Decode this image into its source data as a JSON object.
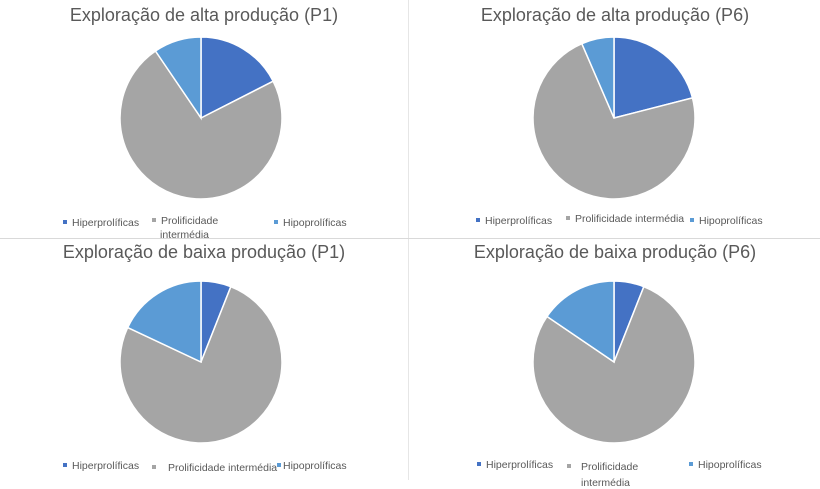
{
  "colors": {
    "hiper": "#4472C4",
    "prolif": "#A5A5A5",
    "hipo": "#5B9BD5",
    "title": "#595959",
    "legend_text": "#595959"
  },
  "legend_labels": [
    "Hiperprolíficas",
    "Prolificidade intermédia",
    "Hipoprolíficas"
  ],
  "charts": [
    {
      "title": "Exploração de alta produção (P1)",
      "legend": {
        "hiper": "Hiperprolíficas",
        "prolif_line1": "Prolificidade",
        "prolif_line2": "intermédia",
        "hipo": "Hipoprolíficas"
      }
    },
    {
      "title": "Exploração de alta produção (P6)",
      "legend": {
        "hiper": "Hiperprolíficas",
        "prolif": "Prolificidade intermédia",
        "hipo": "Hipoprolíficas"
      }
    },
    {
      "title": "Exploração de baixa produção (P1)",
      "legend": {
        "hiper": "Hiperprolíficas",
        "prolif": "Prolificidade intermédia",
        "hipo": "Hipoprolíficas"
      }
    },
    {
      "title": "Exploração de baixa produção (P6)",
      "legend": {
        "hiper": "Hiperprolíficas",
        "prolif_line1": "Prolificidade",
        "prolif_line2": "intermédia",
        "hipo": "Hipoprolíficas"
      }
    }
  ],
  "chart_data": [
    {
      "type": "pie",
      "title": "Exploração de alta produção (P1)",
      "categories": [
        "Hiperprolíficas",
        "Prolificidade intermédia",
        "Hipoprolíficas"
      ],
      "values": [
        17.5,
        73,
        9.5
      ],
      "unit": "%",
      "legend_position": "bottom"
    },
    {
      "type": "pie",
      "title": "Exploração de alta produção (P6)",
      "categories": [
        "Hiperprolíficas",
        "Prolificidade intermédia",
        "Hipoprolíficas"
      ],
      "values": [
        21,
        72.5,
        6.5
      ],
      "unit": "%",
      "legend_position": "bottom"
    },
    {
      "type": "pie",
      "title": "Exploração de baixa produção (P1)",
      "categories": [
        "Hiperprolíficas",
        "Prolificidade intermédia",
        "Hipoprolíficas"
      ],
      "values": [
        6,
        76,
        18
      ],
      "unit": "%",
      "legend_position": "bottom"
    },
    {
      "type": "pie",
      "title": "Exploração de baixa produção (P6)",
      "categories": [
        "Hiperprolíficas",
        "Prolificidade intermédia",
        "Hipoprolíficas"
      ],
      "values": [
        6,
        78.5,
        15.5
      ],
      "unit": "%",
      "legend_position": "bottom"
    }
  ]
}
